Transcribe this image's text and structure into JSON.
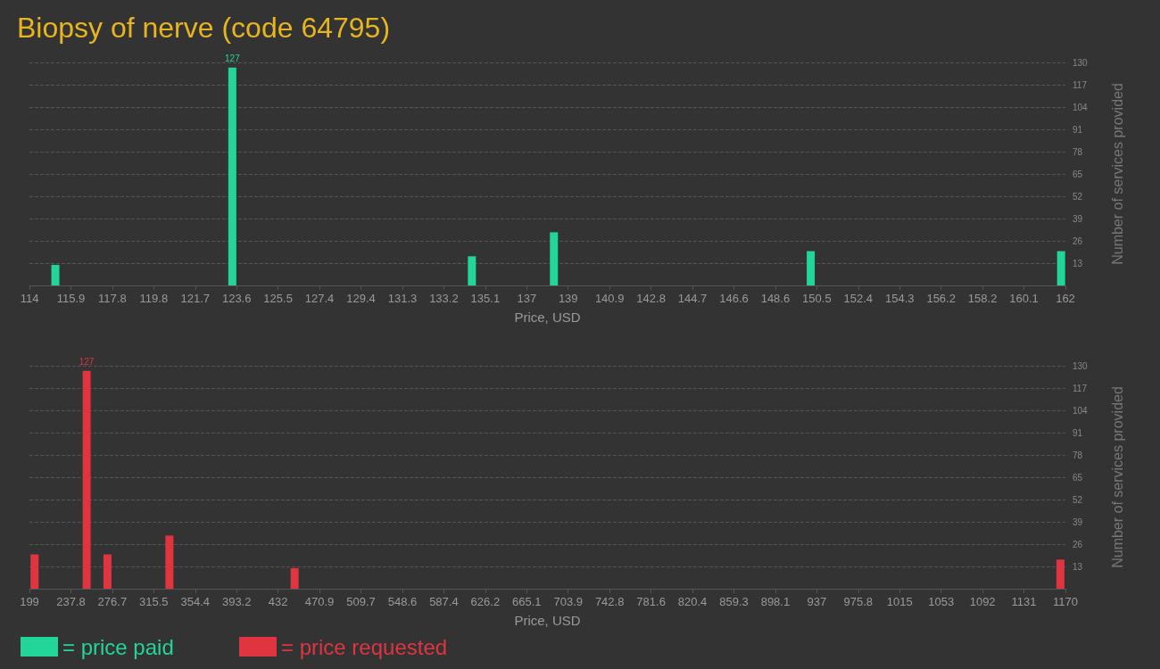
{
  "chart_data": [
    {
      "type": "bar",
      "title": "Biopsy of nerve (code 64795)",
      "xlabel": "Price, USD",
      "ylabel": "Number of services provided",
      "series": [
        {
          "name": "= price paid",
          "color": "#22d69a",
          "x": [
            115.2,
            123.4,
            134.5,
            138.3,
            150.2,
            161.8
          ],
          "values": [
            12,
            127,
            17,
            31,
            20,
            20
          ],
          "value_labels": [
            null,
            "127",
            null,
            null,
            null,
            null
          ]
        }
      ],
      "xlim": [
        114,
        162
      ],
      "xticks": [
        {
          "value": 114,
          "label": "114"
        },
        {
          "value": 115.92,
          "label": "115.9"
        },
        {
          "value": 117.84,
          "label": "117.8"
        },
        {
          "value": 119.76,
          "label": "119.8"
        },
        {
          "value": 121.68,
          "label": "121.7"
        },
        {
          "value": 123.6,
          "label": "123.6"
        },
        {
          "value": 125.52,
          "label": "125.5"
        },
        {
          "value": 127.44,
          "label": "127.4"
        },
        {
          "value": 129.36,
          "label": "129.4"
        },
        {
          "value": 131.28,
          "label": "131.3"
        },
        {
          "value": 133.2,
          "label": "133.2"
        },
        {
          "value": 135.12,
          "label": "135.1"
        },
        {
          "value": 137.04,
          "label": "137"
        },
        {
          "value": 138.96,
          "label": "139"
        },
        {
          "value": 140.88,
          "label": "140.9"
        },
        {
          "value": 142.8,
          "label": "142.8"
        },
        {
          "value": 144.72,
          "label": "144.7"
        },
        {
          "value": 146.64,
          "label": "146.6"
        },
        {
          "value": 148.56,
          "label": "148.6"
        },
        {
          "value": 150.48,
          "label": "150.5"
        },
        {
          "value": 152.4,
          "label": "152.4"
        },
        {
          "value": 154.32,
          "label": "154.3"
        },
        {
          "value": 156.24,
          "label": "156.2"
        },
        {
          "value": 158.16,
          "label": "158.2"
        },
        {
          "value": 160.08,
          "label": "160.1"
        },
        {
          "value": 162,
          "label": "162"
        }
      ],
      "ylim": [
        0,
        130
      ],
      "yticks": [
        13,
        26,
        39,
        52,
        65,
        78,
        91,
        104,
        117,
        130
      ],
      "grid": "y",
      "legend": "bottom left"
    },
    {
      "type": "bar",
      "xlabel": "Price, USD",
      "ylabel": "Number of services provided",
      "series": [
        {
          "name": "= price requested",
          "color": "#e03441",
          "x": [
            203.8,
            252.6,
            272.1,
            330.2,
            447.5,
            1165.3
          ],
          "values": [
            20,
            127,
            20,
            31,
            12,
            17
          ],
          "value_labels": [
            null,
            "127",
            null,
            null,
            null,
            null
          ]
        }
      ],
      "xlim": [
        199,
        1170
      ],
      "xticks": [
        {
          "value": 199,
          "label": "199"
        },
        {
          "value": 237.84,
          "label": "237.8"
        },
        {
          "value": 276.68,
          "label": "276.7"
        },
        {
          "value": 315.52,
          "label": "315.5"
        },
        {
          "value": 354.36,
          "label": "354.4"
        },
        {
          "value": 393.2,
          "label": "393.2"
        },
        {
          "value": 432.04,
          "label": "432"
        },
        {
          "value": 470.88,
          "label": "470.9"
        },
        {
          "value": 509.72,
          "label": "509.7"
        },
        {
          "value": 548.56,
          "label": "548.6"
        },
        {
          "value": 587.4,
          "label": "587.4"
        },
        {
          "value": 626.24,
          "label": "626.2"
        },
        {
          "value": 665.08,
          "label": "665.1"
        },
        {
          "value": 703.92,
          "label": "703.9"
        },
        {
          "value": 742.76,
          "label": "742.8"
        },
        {
          "value": 781.6,
          "label": "781.6"
        },
        {
          "value": 820.44,
          "label": "820.4"
        },
        {
          "value": 859.28,
          "label": "859.3"
        },
        {
          "value": 898.12,
          "label": "898.1"
        },
        {
          "value": 936.96,
          "label": "937"
        },
        {
          "value": 975.8,
          "label": "975.8"
        },
        {
          "value": 1014.64,
          "label": "1015"
        },
        {
          "value": 1053.48,
          "label": "1053"
        },
        {
          "value": 1092.32,
          "label": "1092"
        },
        {
          "value": 1131.16,
          "label": "1131"
        },
        {
          "value": 1170,
          "label": "1170"
        }
      ],
      "ylim": [
        0,
        130
      ],
      "yticks": [
        13,
        26,
        39,
        52,
        65,
        78,
        91,
        104,
        117,
        130
      ],
      "grid": "y",
      "legend": "bottom left"
    }
  ]
}
